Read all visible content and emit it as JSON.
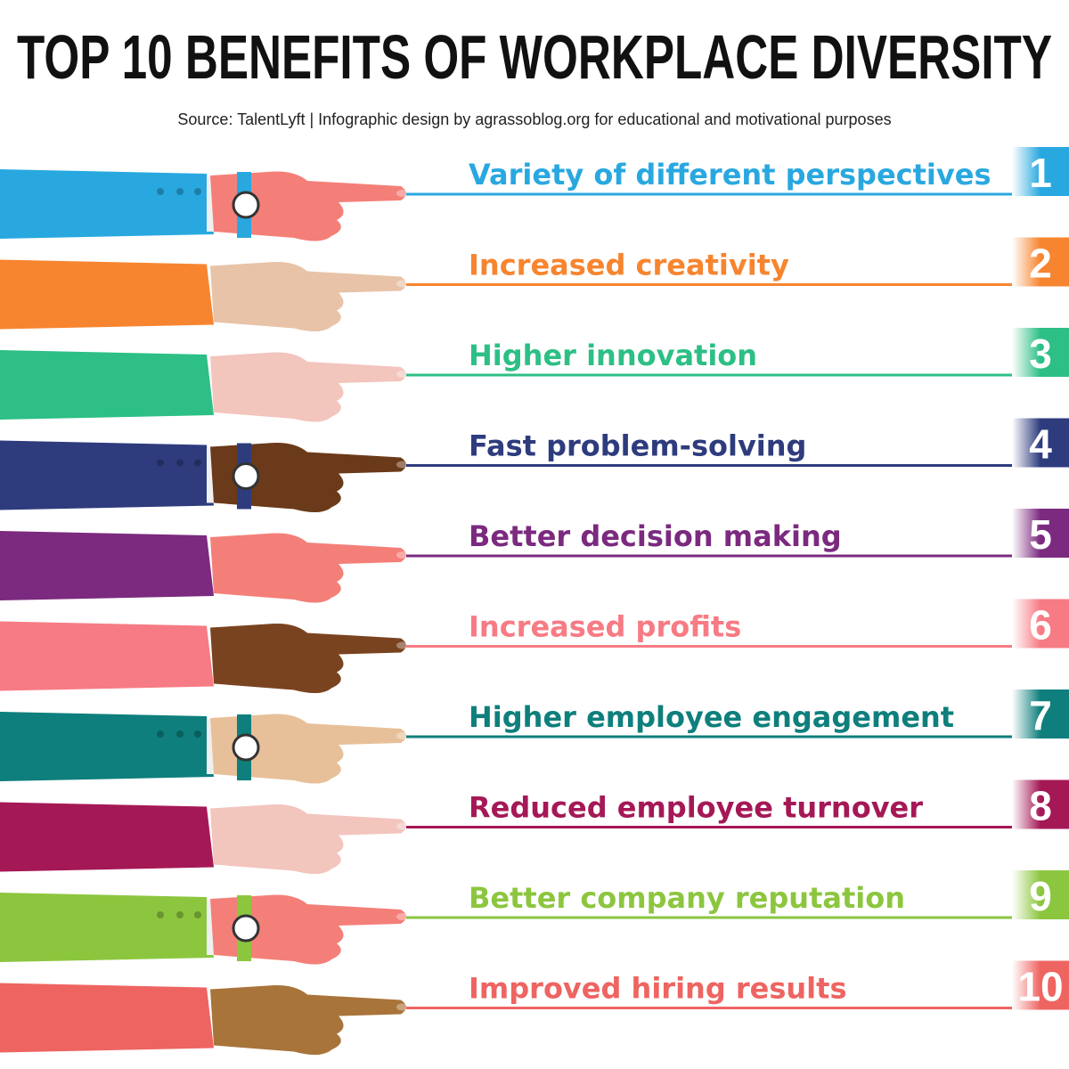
{
  "header": {
    "title": "TOP 10 BENEFITS OF WORKPLACE DIVERSITY",
    "subtitle": "Source: TalentLyft | Infographic design by agrassoblog.org for educational and motivational purposes"
  },
  "items": [
    {
      "number": "1",
      "label": "Variety of different perspectives",
      "color": "#29a8e0"
    },
    {
      "number": "2",
      "label": "Increased creativity",
      "color": "#f7852f"
    },
    {
      "number": "3",
      "label": "Higher innovation",
      "color": "#2dbf85"
    },
    {
      "number": "4",
      "label": "Fast problem-solving",
      "color": "#2e3c7e"
    },
    {
      "number": "5",
      "label": "Better decision making",
      "color": "#7b2a7f"
    },
    {
      "number": "6",
      "label": "Increased profits",
      "color": "#f77b84"
    },
    {
      "number": "7",
      "label": "Higher employee engagement",
      "color": "#0e7f7c"
    },
    {
      "number": "8",
      "label": "Reduced employee turnover",
      "color": "#a51856"
    },
    {
      "number": "9",
      "label": "Better company reputation",
      "color": "#8cc63f"
    },
    {
      "number": "10",
      "label": "Improved hiring results",
      "color": "#ee6461"
    }
  ]
}
